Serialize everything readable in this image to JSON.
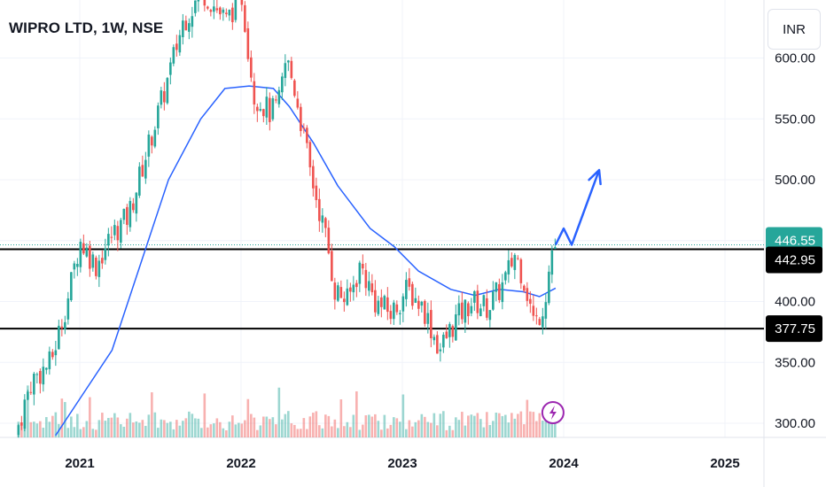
{
  "title": "WIPRO LTD, 1W, NSE",
  "currency": "INR",
  "chart_data": {
    "type": "candlestick",
    "title": "WIPRO LTD, 1W, NSE",
    "xlabel": "",
    "ylabel": "",
    "ylim": [
      290,
      640
    ],
    "xlim": [
      2020.57,
      2025.3
    ],
    "x_ticks": [
      "2021",
      "2022",
      "2023",
      "2024",
      "2025"
    ],
    "y_ticks": [
      300,
      350,
      400,
      450,
      500,
      550,
      600
    ],
    "y_tick_labels": [
      "300.00",
      "350.00",
      "400.00",
      "450.00",
      "500.00",
      "550.00",
      "600.00"
    ],
    "grid": true,
    "colors": {
      "up": "#26a69a",
      "down": "#ef5350",
      "ma": "#2962ff",
      "arrow": "#2962ff",
      "price": "#26a69a"
    },
    "price_path": [
      [
        2020.62,
        290
      ],
      [
        2020.72,
        335
      ],
      [
        2020.84,
        350
      ],
      [
        2020.95,
        405
      ],
      [
        2021.02,
        450
      ],
      [
        2021.12,
        430
      ],
      [
        2021.22,
        455
      ],
      [
        2021.32,
        470
      ],
      [
        2021.45,
        530
      ],
      [
        2021.55,
        575
      ],
      [
        2021.66,
        630
      ],
      [
        2021.78,
        655
      ],
      [
        2021.93,
        630
      ],
      [
        2022.02,
        655
      ],
      [
        2022.1,
        570
      ],
      [
        2022.2,
        555
      ],
      [
        2022.25,
        560
      ],
      [
        2022.3,
        600
      ],
      [
        2022.36,
        570
      ],
      [
        2022.45,
        505
      ],
      [
        2022.55,
        450
      ],
      [
        2022.6,
        410
      ],
      [
        2022.68,
        400
      ],
      [
        2022.76,
        430
      ],
      [
        2022.85,
        400
      ],
      [
        2022.95,
        390
      ],
      [
        2023.05,
        410
      ],
      [
        2023.15,
        395
      ],
      [
        2023.25,
        360
      ],
      [
        2023.35,
        385
      ],
      [
        2023.45,
        400
      ],
      [
        2023.55,
        395
      ],
      [
        2023.65,
        415
      ],
      [
        2023.72,
        440
      ],
      [
        2023.78,
        415
      ],
      [
        2023.84,
        380
      ],
      [
        2023.9,
        400
      ],
      [
        2023.95,
        445
      ]
    ],
    "moving_average": [
      [
        2020.85,
        290
      ],
      [
        2021.0,
        320
      ],
      [
        2021.2,
        360
      ],
      [
        2021.35,
        420
      ],
      [
        2021.55,
        500
      ],
      [
        2021.75,
        550
      ],
      [
        2021.9,
        575
      ],
      [
        2022.05,
        577
      ],
      [
        2022.2,
        575
      ],
      [
        2022.3,
        560
      ],
      [
        2022.45,
        530
      ],
      [
        2022.6,
        495
      ],
      [
        2022.8,
        460
      ],
      [
        2022.95,
        445
      ],
      [
        2023.1,
        425
      ],
      [
        2023.3,
        410
      ],
      [
        2023.45,
        405
      ],
      [
        2023.6,
        410
      ],
      [
        2023.75,
        408
      ],
      [
        2023.85,
        404
      ],
      [
        2023.95,
        411
      ]
    ],
    "horizontal_levels": [
      442.95,
      377.75
    ],
    "current_price_line": 446.55,
    "price_labels": [
      {
        "value": 446.55,
        "label": "446.55",
        "color": "#26a69a"
      },
      {
        "value": 442.95,
        "label": "442.95",
        "color": "#000000"
      },
      {
        "value": 377.75,
        "label": "377.75",
        "color": "#000000"
      }
    ],
    "projection_arrow": [
      [
        2023.95,
        446.55
      ],
      [
        2024.0,
        460
      ],
      [
        2024.05,
        446.55
      ],
      [
        2024.22,
        508
      ]
    ],
    "volume_max_fraction": 0.25,
    "events_icon": "lightning-icon"
  }
}
